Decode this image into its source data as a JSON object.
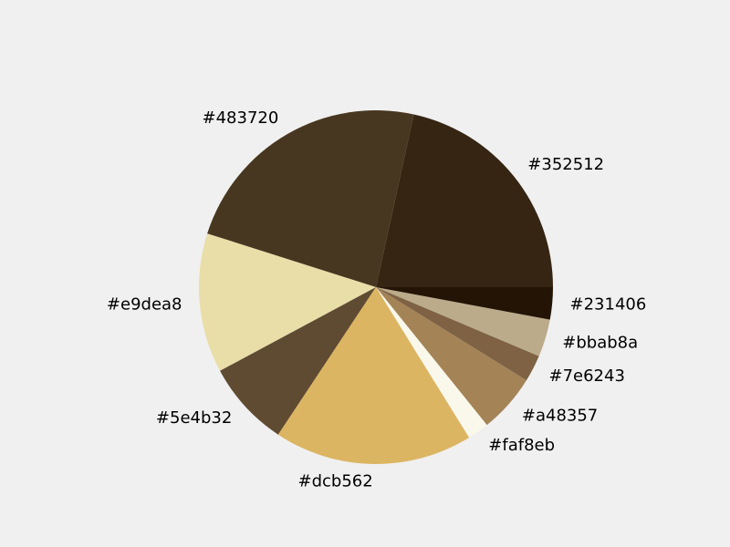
{
  "chart_data": {
    "type": "pie",
    "start_angle_deg": 0,
    "direction": "counterclockwise",
    "slices": [
      {
        "label": "#352512",
        "value": 22.0,
        "color": "#352512"
      },
      {
        "label": "#483720",
        "value": 24.0,
        "color": "#483720"
      },
      {
        "label": "#e9dea8",
        "value": 13.0,
        "color": "#e9dea8"
      },
      {
        "label": "#5e4b32",
        "value": 8.0,
        "color": "#5e4b32"
      },
      {
        "label": "#dcb562",
        "value": 18.5,
        "color": "#dcb562"
      },
      {
        "label": "#faf8eb",
        "value": 2.0,
        "color": "#faf8eb"
      },
      {
        "label": "#a48357",
        "value": 5.5,
        "color": "#a48357"
      },
      {
        "label": "#7e6243",
        "value": 2.5,
        "color": "#7e6243"
      },
      {
        "label": "#bbab8a",
        "value": 3.5,
        "color": "#bbab8a"
      },
      {
        "label": "#231406",
        "value": 3.0,
        "color": "#231406"
      }
    ]
  }
}
